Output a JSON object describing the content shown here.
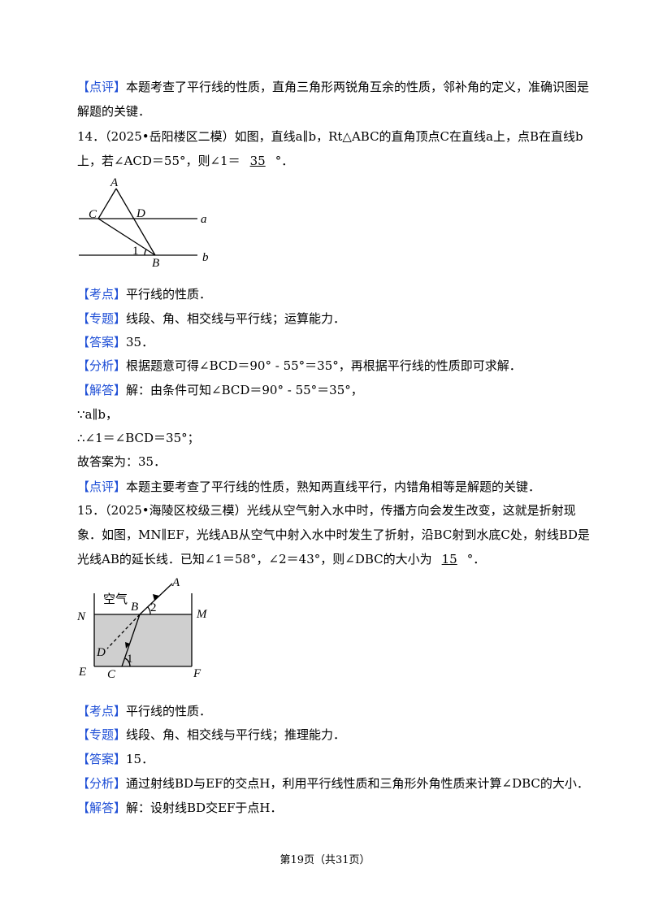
{
  "prev_comment": {
    "tag": "【点评】",
    "text": "本题考查了平行线的性质，直角三角形两锐角互余的性质，邻补角的定义，准确识图是解题的关键．"
  },
  "questions": [
    {
      "stem_before": "14．（2025•岳阳楼区二模）如图，直线a∥b，Rt△ABC的直角顶点C在直线a上，点B在直线b上，若∠ACD＝55°，则∠1＝",
      "blank": "35",
      "stem_after": "°．",
      "figure_labels": {
        "A": "A",
        "C": "C",
        "D": "D",
        "a": "a",
        "B": "B",
        "b": "b",
        "angle1": "1"
      },
      "items": [
        {
          "tag": "【考点】",
          "text": "平行线的性质．"
        },
        {
          "tag": "【专题】",
          "text": "线段、角、相交线与平行线；运算能力．"
        },
        {
          "tag": "【答案】",
          "text": "35．"
        },
        {
          "tag": "【分析】",
          "text": "根据题意可得∠BCD＝90° - 55°＝35°，再根据平行线的性质即可求解．"
        },
        {
          "tag": "【解答】",
          "text": "解：由条件可知∠BCD＝90° - 55°＝35°，"
        },
        {
          "tag": null,
          "text": "∵a∥b，"
        },
        {
          "tag": null,
          "text": "∴∠1＝∠BCD＝35°；"
        },
        {
          "tag": null,
          "text": "故答案为：35．"
        },
        {
          "tag": "【点评】",
          "text": "本题主要考查了平行线的性质，熟知两直线平行，内错角相等是解题的关键．"
        }
      ]
    },
    {
      "stem_before": "15．（2025•海陵区校级三模）光线从空气射入水中时，传播方向会发生改变，这就是折射现象．如图，MN∥EF，光线AB从空气中射入水中时发生了折射，沿BC射到水底C处，射线BD是光线AB的延长线．已知∠1＝58°，∠2＝43°，则∠DBC的大小为",
      "blank": "15",
      "stem_after": "°．",
      "figure_labels": {
        "air": "空气",
        "A": "A",
        "B": "B",
        "angle2": "2",
        "N": "N",
        "M": "M",
        "D": "D",
        "angle1": "1",
        "E": "E",
        "C": "C",
        "F": "F"
      },
      "items": [
        {
          "tag": "【考点】",
          "text": "平行线的性质．"
        },
        {
          "tag": "【专题】",
          "text": "线段、角、相交线与平行线；推理能力．"
        },
        {
          "tag": "【答案】",
          "text": "15．"
        },
        {
          "tag": "【分析】",
          "text": "通过射线BD与EF的交点H，利用平行线性质和三角形外角性质来计算∠DBC的大小．"
        },
        {
          "tag": "【解答】",
          "text": "解：设射线BD交EF于点H．"
        }
      ]
    }
  ],
  "footer": "第19页（共31页）"
}
